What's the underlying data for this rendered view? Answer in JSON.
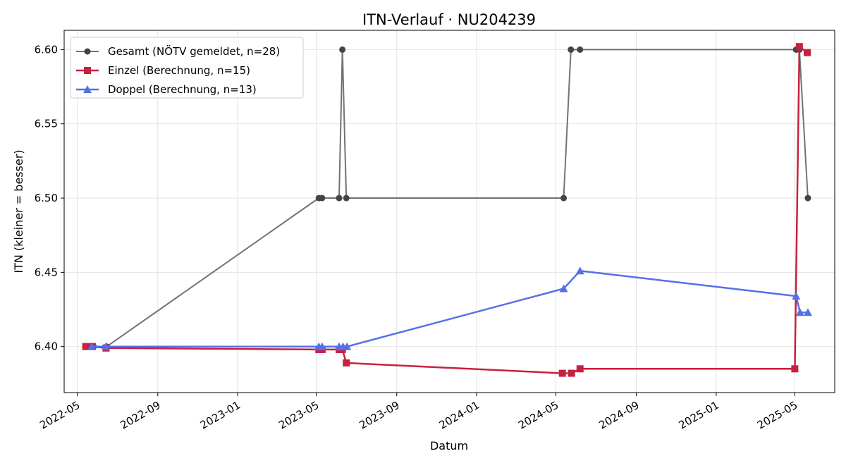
{
  "chart_data": {
    "type": "line",
    "title": "ITN-Verlauf · NU204239",
    "xlabel": "Datum",
    "ylabel": "ITN  (kleiner = besser)",
    "x_is_date": true,
    "xlim": [
      "2022-04-11",
      "2025-07-01"
    ],
    "ylim": [
      6.369,
      6.613
    ],
    "x_ticks": [
      "2022-05-01",
      "2022-09-01",
      "2023-01-01",
      "2023-05-01",
      "2023-09-01",
      "2024-01-01",
      "2024-05-01",
      "2024-09-01",
      "2025-01-01",
      "2025-05-01"
    ],
    "x_tick_labels": [
      "2022-05",
      "2022-09",
      "2023-01",
      "2023-05",
      "2023-09",
      "2024-01",
      "2024-05",
      "2024-09",
      "2025-01",
      "2025-05"
    ],
    "y_ticks": [
      6.4,
      6.45,
      6.5,
      6.55,
      6.6
    ],
    "y_tick_labels": [
      "6.40",
      "6.45",
      "6.50",
      "6.55",
      "6.60"
    ],
    "grid": true,
    "legend_position": "top-left",
    "series": [
      {
        "name": "Gesamt (NÖTV gemeldet, n=28)",
        "color": "#444444",
        "marker": "circle",
        "points": [
          [
            "2022-05-16",
            6.4
          ],
          [
            "2022-05-23",
            6.4
          ],
          [
            "2022-05-26",
            6.4
          ],
          [
            "2022-06-15",
            6.4
          ],
          [
            "2023-05-05",
            6.5
          ],
          [
            "2023-05-10",
            6.5
          ],
          [
            "2023-06-05",
            6.5
          ],
          [
            "2023-06-10",
            6.6
          ],
          [
            "2023-06-16",
            6.5
          ],
          [
            "2024-05-13",
            6.5
          ],
          [
            "2024-05-24",
            6.6
          ],
          [
            "2024-06-07",
            6.6
          ],
          [
            "2025-05-03",
            6.6
          ],
          [
            "2025-05-08",
            6.6
          ],
          [
            "2025-05-21",
            6.5
          ]
        ]
      },
      {
        "name": "Einzel (Berechnung, n=15)",
        "color": "#c8203f",
        "marker": "square",
        "points": [
          [
            "2022-05-14",
            6.4
          ],
          [
            "2022-05-24",
            6.4
          ],
          [
            "2022-06-14",
            6.399
          ],
          [
            "2023-05-05",
            6.398
          ],
          [
            "2023-05-10",
            6.398
          ],
          [
            "2023-06-05",
            6.398
          ],
          [
            "2023-06-10",
            6.398
          ],
          [
            "2023-06-16",
            6.389
          ],
          [
            "2024-05-11",
            6.382
          ],
          [
            "2024-05-25",
            6.382
          ],
          [
            "2024-06-07",
            6.385
          ],
          [
            "2025-05-01",
            6.385
          ],
          [
            "2025-05-08",
            6.602
          ],
          [
            "2025-05-20",
            6.598
          ]
        ]
      },
      {
        "name": "Doppel (Berechnung, n=13)",
        "color": "#5470e8",
        "marker": "triangle",
        "points": [
          [
            "2022-05-23",
            6.4
          ],
          [
            "2022-06-14",
            6.4
          ],
          [
            "2023-05-05",
            6.4
          ],
          [
            "2023-05-10",
            6.4
          ],
          [
            "2023-06-05",
            6.4
          ],
          [
            "2023-06-11",
            6.4
          ],
          [
            "2023-06-17",
            6.4
          ],
          [
            "2024-05-13",
            6.439
          ],
          [
            "2024-06-07",
            6.451
          ],
          [
            "2025-05-03",
            6.434
          ],
          [
            "2025-05-09",
            6.423
          ],
          [
            "2025-05-21",
            6.423
          ]
        ]
      }
    ]
  }
}
